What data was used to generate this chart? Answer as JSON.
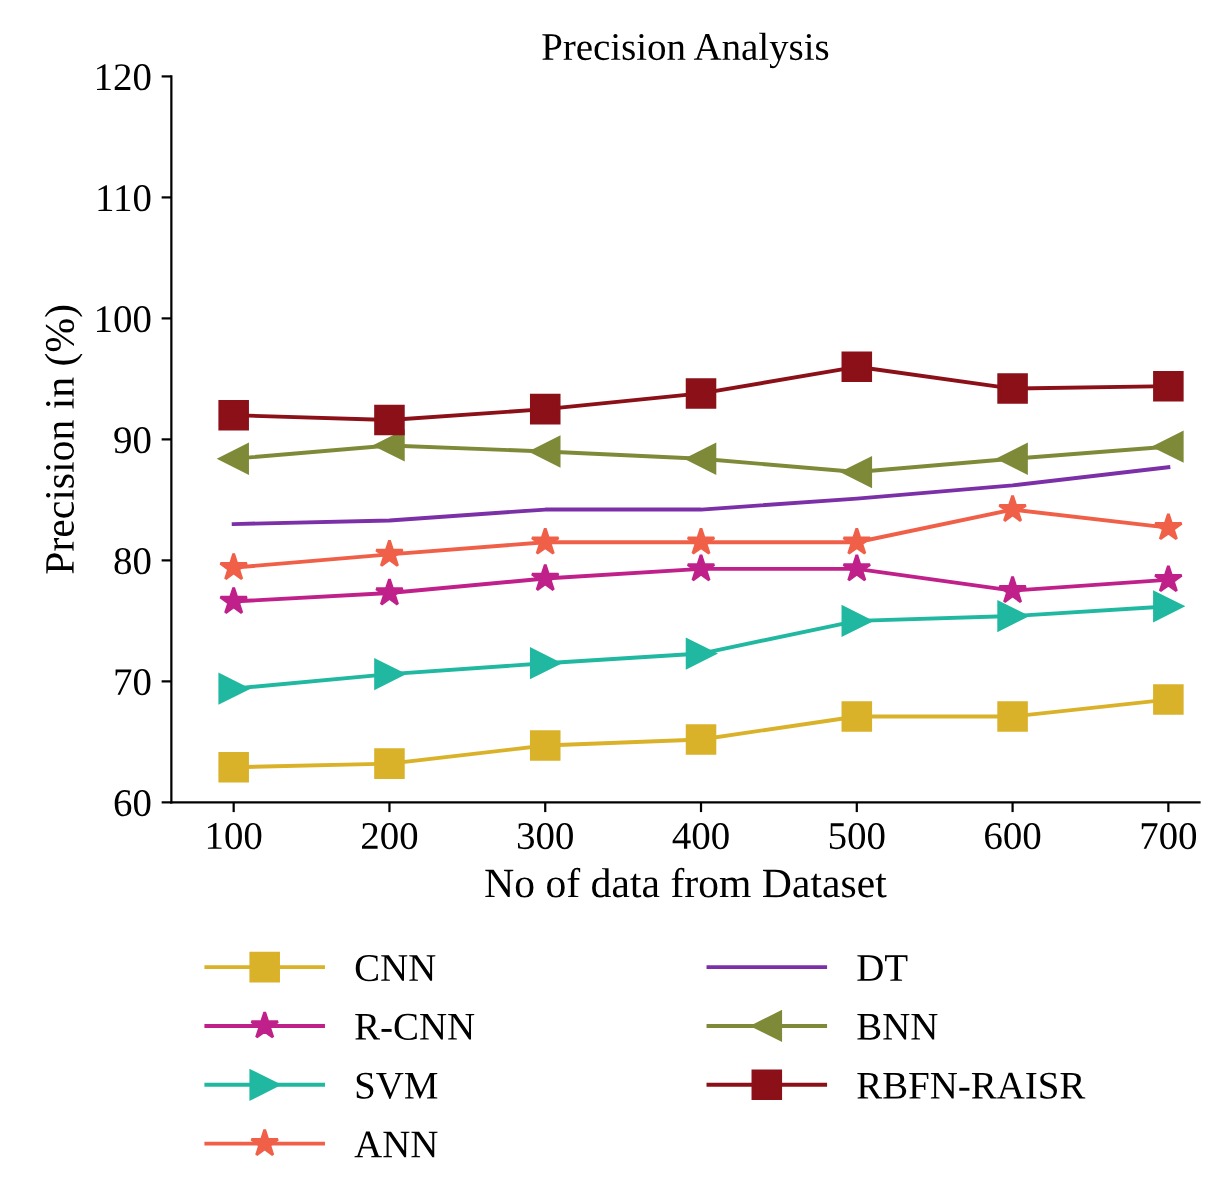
{
  "chart_data": {
    "type": "line",
    "title": "Precision Analysis",
    "xlabel": "No of data from Dataset",
    "ylabel": "Precision in (%)",
    "x": [
      100,
      200,
      300,
      400,
      500,
      600,
      700
    ],
    "xlim": [
      60,
      720
    ],
    "xticks": [
      100,
      200,
      300,
      400,
      500,
      600,
      700
    ],
    "ylim": [
      60,
      120
    ],
    "yticks": [
      60,
      70,
      80,
      90,
      100,
      110,
      120
    ],
    "grid": false,
    "legend": "bottom",
    "line_style": "solid",
    "series": [
      {
        "name": "CNN",
        "color": "#dab22a",
        "marker": "square",
        "values": [
          62.9,
          63.2,
          64.7,
          65.2,
          67.1,
          67.1,
          68.5
        ]
      },
      {
        "name": "R-CNN",
        "color": "#c0208a",
        "marker": "star",
        "values": [
          76.6,
          77.3,
          78.5,
          79.3,
          79.3,
          77.5,
          78.4
        ]
      },
      {
        "name": "SVM",
        "color": "#20b8a0",
        "marker": "triangle-right",
        "values": [
          69.4,
          70.6,
          71.5,
          72.3,
          75.0,
          75.4,
          76.2
        ]
      },
      {
        "name": "ANN",
        "color": "#f06048",
        "marker": "star",
        "values": [
          79.4,
          80.5,
          81.5,
          81.5,
          81.5,
          84.2,
          82.7
        ]
      },
      {
        "name": "DT",
        "color": "#7b30a8",
        "marker": "none",
        "values": [
          83.0,
          83.3,
          84.2,
          84.2,
          85.1,
          86.2,
          87.7
        ]
      },
      {
        "name": "BNN",
        "color": "#7f8a38",
        "marker": "triangle-left",
        "values": [
          88.4,
          89.5,
          89.0,
          88.4,
          87.3,
          88.4,
          89.4
        ]
      },
      {
        "name": "RBFN-RAISR",
        "color": "#8b1018",
        "marker": "square",
        "values": [
          92.0,
          91.6,
          92.5,
          93.8,
          96.0,
          94.2,
          94.4
        ]
      }
    ]
  }
}
